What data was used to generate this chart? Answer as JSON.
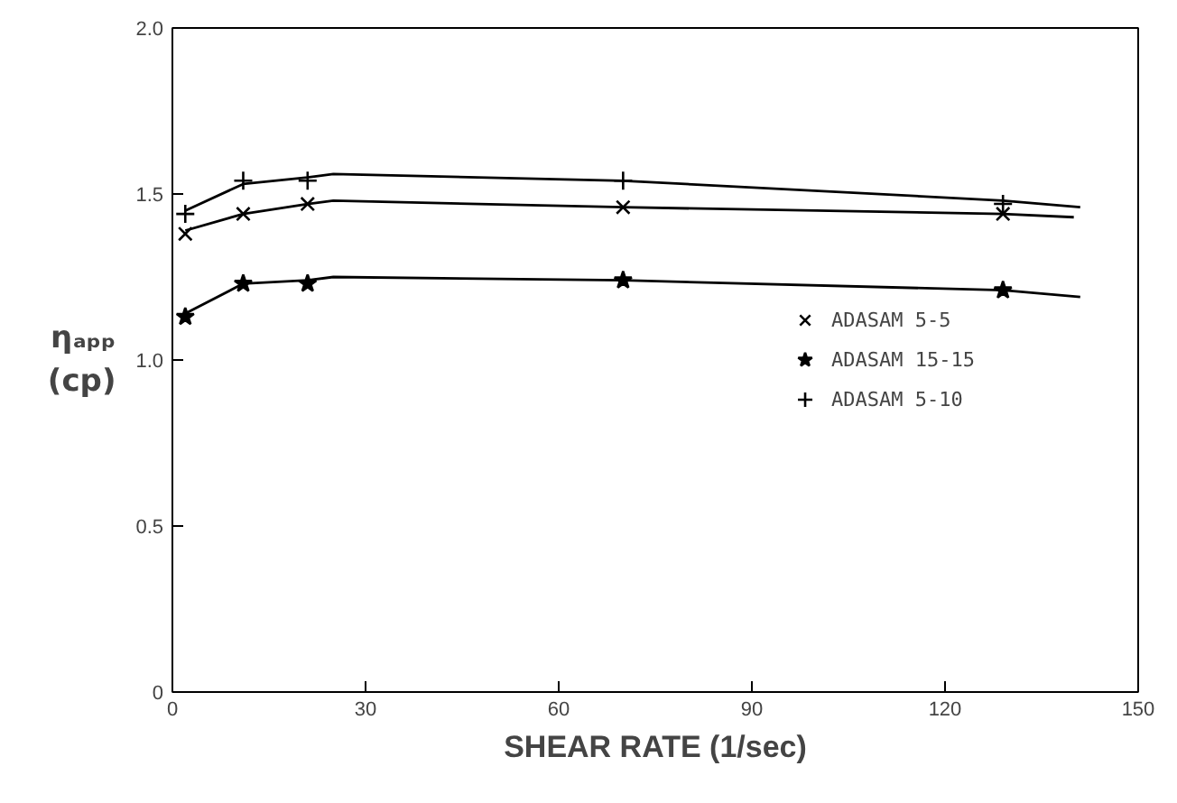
{
  "chart_data": {
    "type": "scatter",
    "xlabel": "SHEAR RATE (1/sec)",
    "ylabel": "ηₐₚₚ\n(cp)",
    "xlim": [
      0,
      150
    ],
    "ylim": [
      0,
      2.0
    ],
    "xticks": [
      0,
      30,
      60,
      90,
      120,
      150
    ],
    "yticks": [
      0,
      0.5,
      {
        "value": 1.0,
        "label": "1.0"
      },
      1.5,
      {
        "value": 2.0,
        "label": "2.0"
      }
    ],
    "grid": false,
    "legend": "center right",
    "series": [
      {
        "name": "ADASAM 5-5",
        "color": "#000000",
        "marker": "x",
        "x": [
          2,
          11,
          21,
          70,
          129
        ],
        "values": [
          1.38,
          1.44,
          1.47,
          1.46,
          1.44
        ]
      },
      {
        "name": "ADASAM 15-15",
        "color": "#000000",
        "marker": "star",
        "x": [
          2,
          11,
          21,
          70,
          129
        ],
        "values": [
          1.13,
          1.23,
          1.23,
          1.24,
          1.21
        ]
      },
      {
        "name": "ADASAM 5-10",
        "color": "#000000",
        "marker": "cross",
        "x": [
          2,
          11,
          21,
          70,
          129
        ],
        "values": [
          1.44,
          1.54,
          1.54,
          1.54,
          1.47
        ]
      },
      {
        "type": "line",
        "color": "#000000",
        "line_style": "solid",
        "x": [
          2,
          11,
          21,
          25,
          70,
          129,
          140
        ],
        "values": [
          1.39,
          1.44,
          1.47,
          1.48,
          1.46,
          1.44,
          1.43
        ]
      },
      {
        "type": "line",
        "color": "#000000",
        "line_style": "solid",
        "x": [
          2,
          11,
          21,
          25,
          70,
          129,
          141
        ],
        "values": [
          1.14,
          1.23,
          1.24,
          1.25,
          1.24,
          1.21,
          1.19
        ]
      },
      {
        "type": "line",
        "color": "#000000",
        "line_style": "solid",
        "x": [
          2,
          11,
          21,
          25,
          70,
          129,
          141
        ],
        "values": [
          1.45,
          1.53,
          1.55,
          1.56,
          1.54,
          1.48,
          1.46
        ]
      }
    ]
  }
}
